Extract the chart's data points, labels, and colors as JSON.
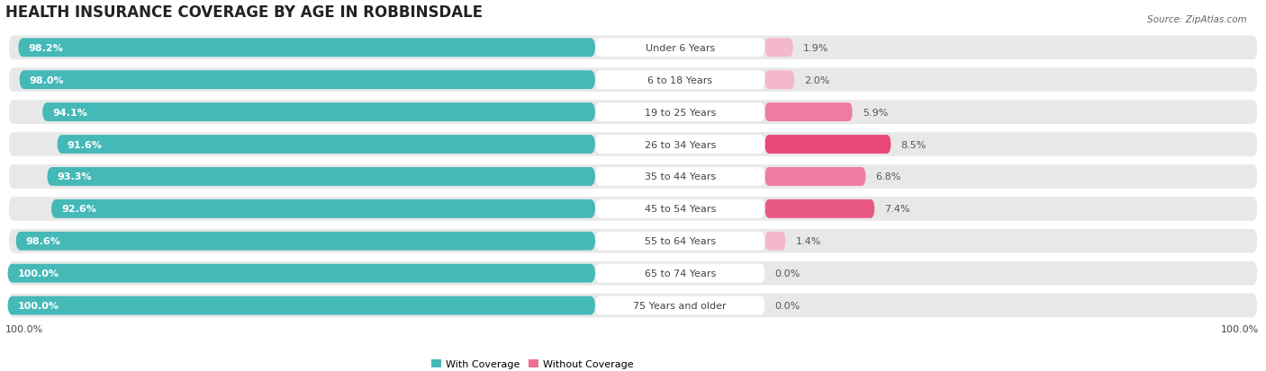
{
  "title": "HEALTH INSURANCE COVERAGE BY AGE IN ROBBINSDALE",
  "source": "Source: ZipAtlas.com",
  "categories": [
    "Under 6 Years",
    "6 to 18 Years",
    "19 to 25 Years",
    "26 to 34 Years",
    "35 to 44 Years",
    "45 to 54 Years",
    "55 to 64 Years",
    "65 to 74 Years",
    "75 Years and older"
  ],
  "with_coverage": [
    98.2,
    98.0,
    94.1,
    91.6,
    93.3,
    92.6,
    98.6,
    100.0,
    100.0
  ],
  "without_coverage": [
    1.9,
    2.0,
    5.9,
    8.5,
    6.8,
    7.4,
    1.4,
    0.0,
    0.0
  ],
  "coverage_color": "#45b8b8",
  "no_coverage_colors": [
    "#f4b8ca",
    "#f4b8ca",
    "#f07aa0",
    "#e84878",
    "#f07aa0",
    "#e85882",
    "#f4b8ca",
    "#f4c8d4",
    "#f4c8d4"
  ],
  "row_bg_color": "#e8e8e8",
  "label_bg_color": "#ffffff",
  "title_fontsize": 12,
  "bar_label_fontsize": 8,
  "cat_label_fontsize": 8,
  "pct_label_fontsize": 8,
  "legend_label_coverage": "With Coverage",
  "legend_label_no_coverage": "Without Coverage",
  "x_label_bottom_left": "100.0%",
  "x_label_bottom_right": "100.0%",
  "figsize": [
    14.06,
    4.14
  ],
  "dpi": 100,
  "left_pct_label_color": "#ffffff",
  "right_pct_label_color": "#555555",
  "cat_label_color": "#444444",
  "teal_legend_color": "#45b8b8",
  "pink_legend_color": "#f07090"
}
